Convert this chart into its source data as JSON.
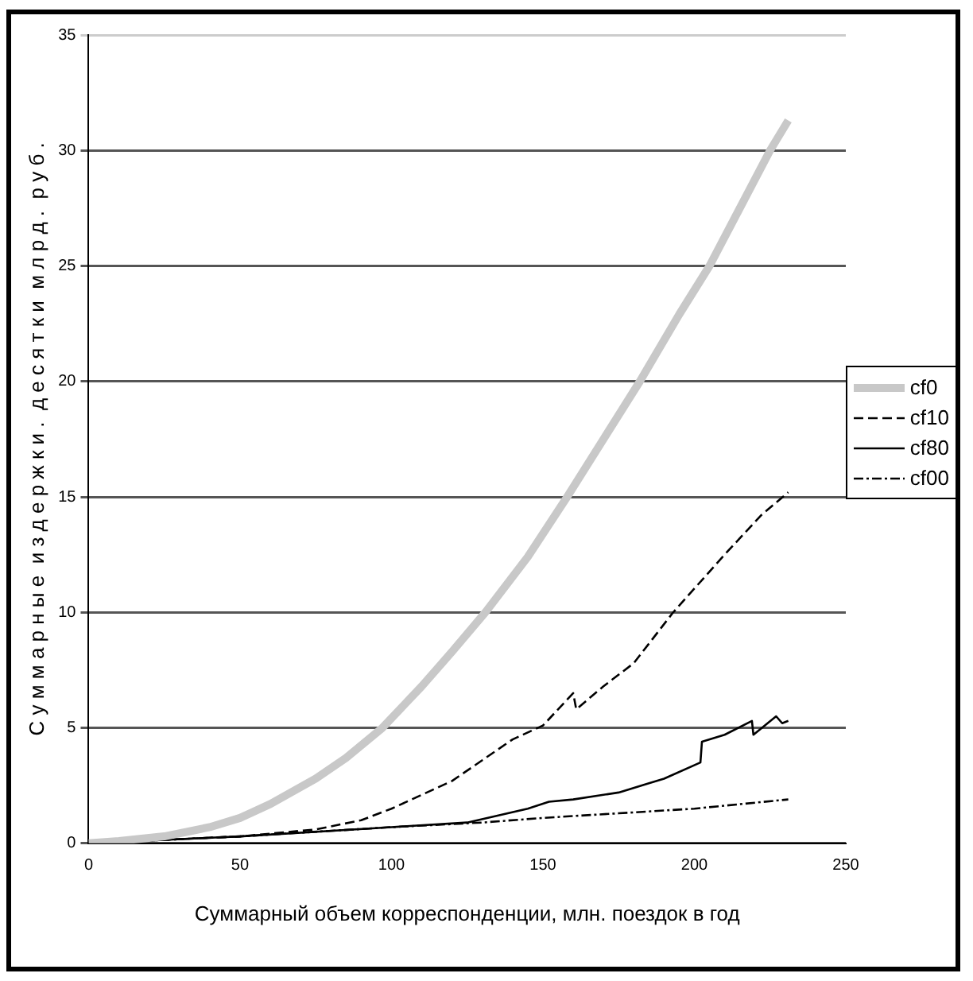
{
  "chart_data": {
    "type": "line",
    "xlabel": "Суммарный объем корреспонденции, млн. поездок в год",
    "ylabel": "С у м м а р н ы е  и з д е р ж к и .  д е с я т к и  м л р д .  р у б .",
    "xlim": [
      0,
      250
    ],
    "xticks": [
      0,
      50,
      100,
      150,
      200,
      250
    ],
    "ylim": [
      0,
      35
    ],
    "yticks": [
      0,
      5,
      10,
      15,
      20,
      25,
      30,
      35
    ],
    "grid": "y",
    "legend": "right",
    "marker": "none",
    "series": [
      {
        "name": "cf0",
        "color": "#c8c8c8",
        "line_style": "solid",
        "x": [
          0,
          10,
          25,
          40,
          50,
          60,
          75,
          85,
          97,
          110,
          120,
          131,
          145,
          158,
          170,
          182,
          195,
          205,
          215,
          225,
          231
        ],
        "values": [
          0,
          0.1,
          0.3,
          0.7,
          1.1,
          1.7,
          2.8,
          3.7,
          5,
          6.8,
          8.3,
          10,
          12.4,
          15,
          17.5,
          20,
          22.9,
          25,
          27.5,
          30,
          31.3
        ]
      },
      {
        "name": "cf10",
        "color": "#000000",
        "line_style": "dashed",
        "x": [
          0,
          50,
          75,
          90,
          100,
          110,
          120,
          130,
          140,
          150,
          160,
          161,
          170,
          180,
          193,
          210,
          222,
          231
        ],
        "values": [
          0,
          0.3,
          0.6,
          1,
          1.5,
          2.1,
          2.7,
          3.6,
          4.5,
          5.1,
          6.5,
          5.8,
          6.8,
          7.8,
          10,
          12.5,
          14.2,
          15.2
        ]
      },
      {
        "name": "cf80",
        "color": "#000000",
        "line_style": "solid",
        "x": [
          0,
          50,
          100,
          125,
          135,
          145,
          152,
          160,
          175,
          185,
          190,
          202,
          202.5,
          210,
          219,
          219.5,
          227,
          229,
          231
        ],
        "values": [
          0,
          0.3,
          0.7,
          0.9,
          1.2,
          1.5,
          1.8,
          1.9,
          2.2,
          2.6,
          2.8,
          3.5,
          4.4,
          4.7,
          5.3,
          4.7,
          5.5,
          5.2,
          5.3
        ]
      },
      {
        "name": "cf00",
        "color": "#000000",
        "line_style": "dotted",
        "x": [
          0,
          50,
          100,
          130,
          150,
          175,
          200,
          231
        ],
        "values": [
          0,
          0.3,
          0.7,
          0.9,
          1.1,
          1.3,
          1.5,
          1.9
        ]
      }
    ]
  }
}
